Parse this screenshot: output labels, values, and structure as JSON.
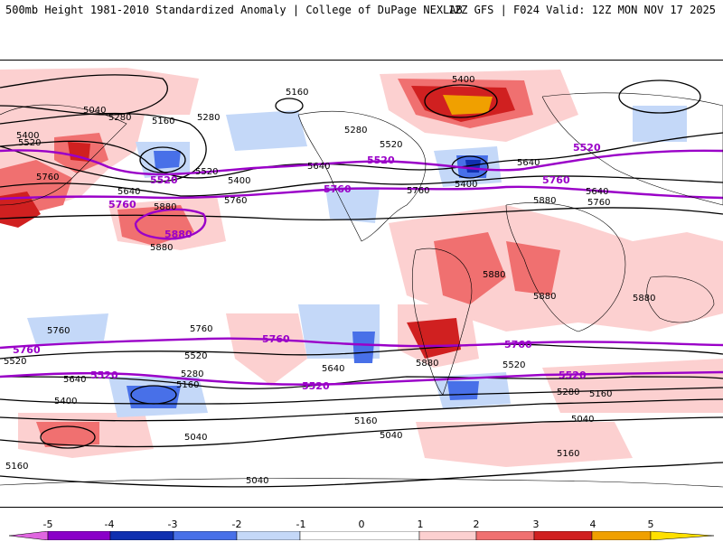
{
  "header": {
    "left_title": "500mb Height 1981-2010 Standardized Anomaly | College of DuPage NEXLAB",
    "right_title": "12Z GFS | F024 Valid: 12Z MON NOV 17 2025"
  },
  "colors": {
    "neg5": "#e066e0",
    "neg4": "#8a00c8",
    "neg3": "#1030b0",
    "neg2": "#4870e8",
    "neg1": "#c4d8f8",
    "pos1": "#fcd0d0",
    "pos2": "#f07070",
    "pos3": "#d02020",
    "pos4": "#a00000",
    "pos5": "#f0a000",
    "contour": "#000000",
    "highlight": "#9a00c8"
  },
  "colorbar": {
    "ticks": [
      "-5",
      "-4",
      "-3",
      "-2",
      "-1",
      "0",
      "1",
      "2",
      "3",
      "4",
      "5"
    ]
  },
  "contour_labels": {
    "c5400_a": "5400",
    "c5400_b": "5400",
    "c5400_c": "5400",
    "c5400_d": "5400",
    "c5400_e": "5400",
    "c5040_a": "5040",
    "c5040_b": "5040",
    "c5040_c": "5040",
    "c5040_d": "5040",
    "c5040_e": "5040",
    "c5160_a": "5160",
    "c5160_b": "5160",
    "c5160_c": "5160",
    "c5160_d": "5160",
    "c5160_e": "5160",
    "c5160_f": "5160",
    "c5160_g": "5160",
    "c5280_a": "5280",
    "c5280_b": "5280",
    "c5280_c": "5280",
    "c5280_d": "5280",
    "c5280_e": "5280",
    "c5520_a": "5520",
    "c5520_b": "5520",
    "c5520_c": "5520",
    "c5520_d": "5520",
    "c5520_e": "5520",
    "c5520_f": "5520",
    "c5640_a": "5640",
    "c5640_b": "5640",
    "c5640_c": "5640",
    "c5640_d": "5640",
    "c5640_e": "5640",
    "c5640_f": "5640",
    "c5760_a": "5760",
    "c5760_b": "5760",
    "c5760_c": "5760",
    "c5760_d": "5760",
    "c5760_e": "5760",
    "c5760_f": "5760",
    "c5880_a": "5880",
    "c5880_b": "5880",
    "c5880_c": "5880",
    "c5880_d": "5880",
    "c5880_e": "5880",
    "c5880_f": "5880",
    "c5880_g": "5880"
  },
  "highlight_labels": {
    "h5520_a": "5520",
    "h5520_b": "5520",
    "h5520_c": "5520",
    "h5520_d": "5520",
    "h5520_e": "5520",
    "h5520_f": "5520",
    "h5760_a": "5760",
    "h5760_b": "5760",
    "h5760_c": "5760",
    "h5760_d": "5760",
    "h5760_e": "5760",
    "h5760_f": "5760",
    "h5880": "5880"
  }
}
